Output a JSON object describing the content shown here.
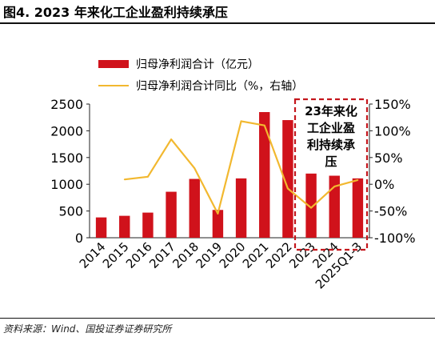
{
  "header": {
    "title": "图4. 2023 年来化工企业盈利持续承压"
  },
  "footer": {
    "source": "资料来源：Wind、国投证券证券研究所"
  },
  "annotation": {
    "lines": [
      "23年来化",
      "工企业盈",
      "利持续承",
      "压"
    ]
  },
  "colors": {
    "bar": "#d0121b",
    "line": "#f2b82f",
    "annotation_border": "#c4161c"
  },
  "chart_data": {
    "type": "bar",
    "categories": [
      "2014",
      "2015",
      "2016",
      "2017",
      "2018",
      "2019",
      "2020",
      "2021",
      "2022",
      "2023",
      "2024",
      "2025Q1-3"
    ],
    "series": [
      {
        "name": "归母净利润合计（亿元）",
        "type": "bar",
        "axis": "left",
        "values": [
          380,
          410,
          470,
          860,
          1100,
          520,
          1110,
          2350,
          2200,
          1200,
          1160,
          1110
        ]
      },
      {
        "name": "归母净利润合计同比（%，右轴）",
        "type": "line",
        "axis": "right",
        "values": [
          null,
          9,
          14,
          84,
          30,
          -55,
          118,
          110,
          -8,
          -44,
          -4,
          8
        ]
      }
    ],
    "y_left": {
      "lim": [
        0,
        2500
      ],
      "ticks": [
        "0",
        "500",
        "1000",
        "1500",
        "2000",
        "2500"
      ]
    },
    "y_right": {
      "lim": [
        -100,
        150
      ],
      "ticks": [
        "-100%",
        "-50%",
        "0%",
        "50%",
        "100%",
        "150%"
      ]
    },
    "grid": false,
    "legend_position": "top-left"
  }
}
